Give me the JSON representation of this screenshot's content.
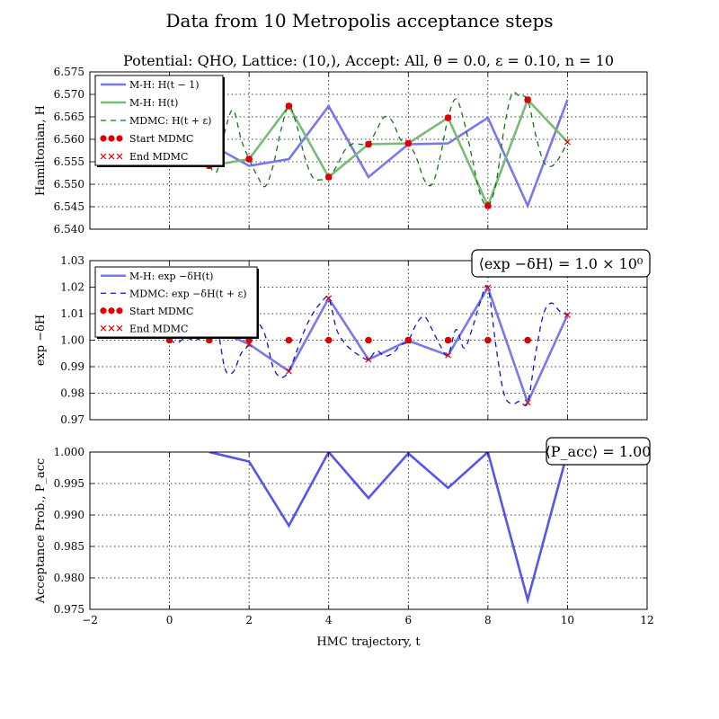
{
  "chart_data": {
    "type": "line",
    "title": "Data from 10 Metropolis acceptance steps",
    "subtitle": "Potential: QHO, Lattice: (10,), Accept: All, θ = 0.0, ε = 0.10, n = 10",
    "xlabel": "HMC trajectory, t",
    "xlim": [
      -2,
      12
    ],
    "xticks": [
      -2,
      0,
      2,
      4,
      6,
      8,
      10,
      12
    ],
    "xtick_labels": [
      "−2",
      "0",
      "2",
      "4",
      "6",
      "8",
      "10",
      "12"
    ],
    "panels": [
      {
        "id": "hamiltonian",
        "ylabel": "Hamiltonian, H",
        "ylim": [
          6.54,
          6.575
        ],
        "yticks": [
          6.54,
          6.545,
          6.55,
          6.555,
          6.56,
          6.565,
          6.57,
          6.575
        ],
        "ytick_labels": [
          "6.540",
          "6.545",
          "6.550",
          "6.555",
          "6.560",
          "6.565",
          "6.570",
          "6.575"
        ],
        "grid": true,
        "legend_position": "top-left",
        "legend": [
          "M-H: H(t − 1)",
          "M-H: H(t)",
          "MDMC: H(t + ε)",
          "Start MDMC",
          "End MDMC"
        ],
        "series": [
          {
            "name": "M-H: H(t − 1)",
            "style": "line",
            "color": "#7777ee",
            "x": [
              1,
              2,
              3,
              4,
              5,
              6,
              7,
              8,
              9,
              10
            ],
            "y": [
              6.559,
              6.5541,
              6.5556,
              6.5674,
              6.5516,
              6.5589,
              6.5591,
              6.5648,
              6.5452,
              6.5688
            ]
          },
          {
            "name": "M-H: H(t)",
            "style": "line",
            "color": "#77bb77",
            "x": [
              1,
              2,
              3,
              4,
              5,
              6,
              7,
              8,
              9,
              10
            ],
            "y": [
              6.5541,
              6.5556,
              6.5674,
              6.5516,
              6.5589,
              6.5591,
              6.5648,
              6.5452,
              6.5688,
              6.5594
            ]
          },
          {
            "name": "MDMC: H(t + ε)",
            "style": "dashed",
            "color": "#117711",
            "x": [
              1.0,
              1.2,
              1.4,
              1.6,
              1.8,
              2.0,
              2.2,
              2.4,
              2.6,
              2.8,
              3.0,
              3.2,
              3.4,
              3.6,
              3.8,
              4.0,
              4.2,
              4.4,
              4.6,
              4.8,
              5.0,
              5.2,
              5.4,
              5.6,
              5.8,
              6.0,
              6.2,
              6.4,
              6.6,
              6.8,
              7.0,
              7.2,
              7.4,
              7.6,
              7.8,
              8.0,
              8.2,
              8.4,
              8.6,
              8.8,
              9.0,
              9.2,
              9.4,
              9.6,
              9.8,
              10.0
            ],
            "y": [
              6.5541,
              6.553,
              6.562,
              6.5665,
              6.56,
              6.5556,
              6.552,
              6.5495,
              6.554,
              6.562,
              6.5674,
              6.563,
              6.556,
              6.5515,
              6.551,
              6.5516,
              6.554,
              6.5575,
              6.559,
              6.5589,
              6.5589,
              6.562,
              6.565,
              6.564,
              6.56,
              6.5591,
              6.556,
              6.551,
              6.55,
              6.556,
              6.5648,
              6.569,
              6.564,
              6.556,
              6.548,
              6.5452,
              6.55,
              6.562,
              6.57,
              6.5695,
              6.5688,
              6.561,
              6.555,
              6.554,
              6.556,
              6.5594
            ]
          },
          {
            "name": "Start MDMC",
            "style": "markers-circle",
            "color": "#dd0000",
            "x": [
              1,
              2,
              3,
              4,
              5,
              6,
              7,
              8,
              9
            ],
            "y": [
              6.5541,
              6.5556,
              6.5674,
              6.5516,
              6.5589,
              6.5591,
              6.5648,
              6.5452,
              6.5688
            ]
          },
          {
            "name": "End MDMC",
            "style": "markers-x",
            "color": "#dd0000",
            "x": [
              1,
              2,
              3,
              4,
              5,
              6,
              7,
              8,
              9,
              10
            ],
            "y": [
              6.5541,
              6.5556,
              6.5674,
              6.5516,
              6.5589,
              6.5591,
              6.5648,
              6.5452,
              6.5688,
              6.5594
            ]
          }
        ]
      },
      {
        "id": "exp-dh",
        "ylabel": "exp −δH",
        "ylim": [
          0.97,
          1.03
        ],
        "yticks": [
          0.97,
          0.98,
          0.99,
          1.0,
          1.01,
          1.02,
          1.03
        ],
        "ytick_labels": [
          "0.97",
          "0.98",
          "0.99",
          "1.00",
          "1.01",
          "1.02",
          "1.03"
        ],
        "grid": true,
        "legend_position": "top-left",
        "legend": [
          "M-H: exp −δH(t)",
          "MDMC: exp −δH(t + ε)",
          "Start MDMC",
          "End MDMC"
        ],
        "annotation": "⟨exp −δH⟩ = 1.0 × 10⁰",
        "series": [
          {
            "name": "M-H: exp −δH(t)",
            "style": "line",
            "color": "#7777ee",
            "x": [
              1,
              2,
              3,
              4,
              5,
              6,
              7,
              8,
              9,
              10
            ],
            "y": [
              1.005,
              0.9985,
              0.9883,
              1.0158,
              0.9927,
              0.9998,
              0.9943,
              1.0198,
              0.9765,
              1.0095
            ]
          },
          {
            "name": "MDMC: exp −δH(t + ε)",
            "style": "dashed",
            "color": "#1111cc",
            "x": [
              0.0,
              0.2,
              0.4,
              0.6,
              0.8,
              1.0,
              1.2,
              1.4,
              1.6,
              1.8,
              2.0,
              2.2,
              2.4,
              2.6,
              2.8,
              3.0,
              3.2,
              3.4,
              3.6,
              3.8,
              4.0,
              4.2,
              4.4,
              4.6,
              4.8,
              5.0,
              5.2,
              5.4,
              5.6,
              5.8,
              6.0,
              6.2,
              6.4,
              6.6,
              6.8,
              7.0,
              7.2,
              7.4,
              7.6,
              7.8,
              8.0,
              8.2,
              8.4,
              8.6,
              8.8,
              9.0,
              9.2,
              9.4,
              9.6,
              9.8,
              10.0
            ],
            "y": [
              1.0,
              0.999,
              1.001,
              1.0,
              1.001,
              1.005,
              1.004,
              0.989,
              0.988,
              0.995,
              0.9985,
              1.006,
              1.002,
              0.99,
              0.986,
              0.9883,
              0.996,
              1.004,
              1.01,
              1.014,
              1.0158,
              1.004,
              0.999,
              0.996,
              0.994,
              0.9927,
              0.996,
              0.994,
              0.995,
              0.998,
              0.9998,
              1.006,
              1.009,
              1.004,
              0.998,
              0.9943,
              1.004,
              0.997,
              1.004,
              1.014,
              1.0198,
              0.998,
              0.98,
              0.976,
              0.977,
              0.9765,
              0.995,
              1.01,
              1.014,
              1.011,
              1.0095
            ]
          },
          {
            "name": "Start MDMC",
            "style": "markers-circle",
            "color": "#dd0000",
            "x": [
              0,
              1,
              2,
              3,
              4,
              5,
              6,
              7,
              8,
              9
            ],
            "y": [
              1.0,
              1.0,
              1.0,
              1.0,
              1.0,
              1.0,
              1.0,
              1.0,
              1.0,
              1.0
            ]
          },
          {
            "name": "End MDMC",
            "style": "markers-x",
            "color": "#dd0000",
            "x": [
              1,
              2,
              3,
              4,
              5,
              6,
              7,
              8,
              9,
              10
            ],
            "y": [
              1.005,
              0.9985,
              0.9883,
              1.0158,
              0.9927,
              0.9998,
              0.9943,
              1.0198,
              0.9765,
              1.0095
            ]
          }
        ]
      },
      {
        "id": "acceptance",
        "ylabel": "Acceptance Prob., P_acc",
        "ylim": [
          0.975,
          1.0
        ],
        "yticks": [
          0.975,
          0.98,
          0.985,
          0.99,
          0.995,
          1.0
        ],
        "ytick_labels": [
          "0.975",
          "0.980",
          "0.985",
          "0.990",
          "0.995",
          "1.000"
        ],
        "grid": true,
        "annotation": "⟨P_acc⟩ = 1.00",
        "series": [
          {
            "name": "P_acc",
            "style": "line",
            "color": "#5555ee",
            "x": [
              1,
              2,
              3,
              4,
              5,
              6,
              7,
              8,
              9,
              10
            ],
            "y": [
              1.0,
              0.9985,
              0.9883,
              1.0,
              0.9927,
              0.9998,
              0.9943,
              1.0,
              0.9765,
              1.0
            ]
          }
        ]
      }
    ]
  }
}
